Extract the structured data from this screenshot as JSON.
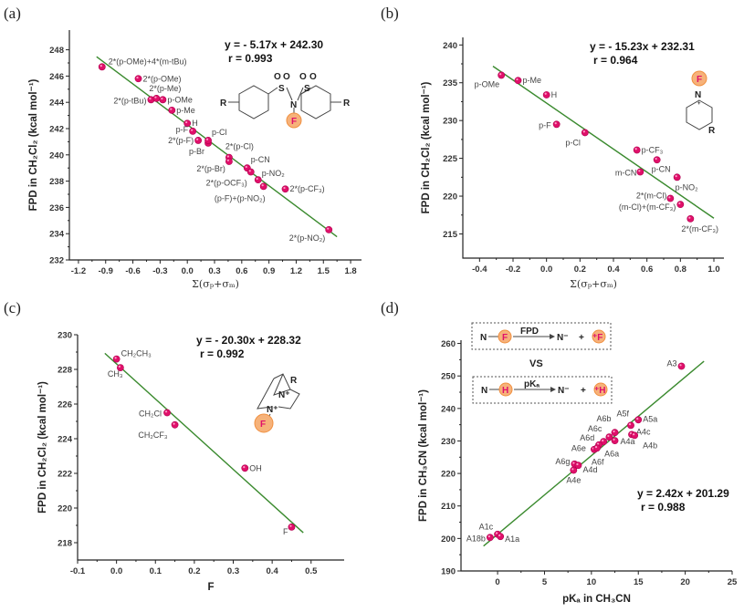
{
  "chart_data": [
    {
      "panel": "(a)",
      "type": "scatter",
      "xlabel": "Σ(σₚ+σₘ)",
      "ylabel": "FPD in CH₂Cl₂ (kcal mol⁻¹)",
      "xlim": [
        -1.3,
        1.92
      ],
      "ylim": [
        232,
        249.5
      ],
      "xticks": [
        "-1.2",
        "-0.9",
        "-0.6",
        "-0.3",
        "0.0",
        "0.3",
        "0.6",
        "0.9",
        "1.2",
        "1.5",
        "1.8"
      ],
      "xtick_values": [
        -1.2,
        -0.9,
        -0.6,
        -0.3,
        0,
        0.3,
        0.6,
        0.9,
        1.2,
        1.5,
        1.8
      ],
      "yticks": [
        "232",
        "234",
        "236",
        "238",
        "240",
        "242",
        "244",
        "246",
        "248"
      ],
      "ytick_values": [
        232,
        234,
        236,
        238,
        240,
        242,
        244,
        246,
        248
      ],
      "equation": "y = - 5.17x + 242.30",
      "r": "r = 0.993",
      "fit": {
        "slope": -5.17,
        "intercept": 242.3,
        "x_range": [
          -1.0,
          1.65
        ]
      },
      "points": [
        {
          "label": "2*(p-OMe)+4*(m-tBu)",
          "x": -0.94,
          "y": 246.7
        },
        {
          "label": "2*(p-OMe)",
          "x": -0.54,
          "y": 245.8
        },
        {
          "label": "2*(p-tBu)",
          "x": -0.4,
          "y": 244.2
        },
        {
          "label": "2*(p-Me)",
          "x": -0.34,
          "y": 244.3
        },
        {
          "label": "p-OMe",
          "x": -0.27,
          "y": 244.2
        },
        {
          "label": "p-Me",
          "x": -0.17,
          "y": 243.4
        },
        {
          "label": "H",
          "x": 0.0,
          "y": 242.4
        },
        {
          "label": "p-F",
          "x": 0.06,
          "y": 241.8
        },
        {
          "label": "2*(p-F)",
          "x": 0.12,
          "y": 241.1
        },
        {
          "label": "p-Br",
          "x": 0.23,
          "y": 240.9
        },
        {
          "label": "p-Cl",
          "x": 0.23,
          "y": 241.1
        },
        {
          "label": "2*(p-Cl)",
          "x": 0.46,
          "y": 239.8
        },
        {
          "label": "2*(p-Br)",
          "x": 0.46,
          "y": 239.5
        },
        {
          "label": "p-CN",
          "x": 0.66,
          "y": 239.0
        },
        {
          "label": "2*(p-OCF₃)",
          "x": 0.7,
          "y": 238.7
        },
        {
          "label": "p-NO₂",
          "x": 0.78,
          "y": 238.1
        },
        {
          "label": "(p-F)+(p-NO₂)",
          "x": 0.84,
          "y": 237.6
        },
        {
          "label": "2*(p-CF₃)",
          "x": 1.08,
          "y": 237.4
        },
        {
          "label": "2*(p-NO₂)",
          "x": 1.56,
          "y": 234.3
        }
      ]
    },
    {
      "panel": "(b)",
      "type": "scatter",
      "xlabel": "Σ(σₚ+σₘ)",
      "ylabel": "FPD in CH₂Cl₂ (kcal mol⁻¹)",
      "xlim": [
        -0.5,
        1.06
      ],
      "ylim": [
        211.8,
        241
      ],
      "xticks": [
        "-0.4",
        "-0.2",
        "0.0",
        "0.2",
        "0.4",
        "0.6",
        "0.8",
        "1.0"
      ],
      "xtick_values": [
        -0.4,
        -0.2,
        0,
        0.2,
        0.4,
        0.6,
        0.8,
        1.0
      ],
      "yticks": [
        "215",
        "220",
        "225",
        "230",
        "235",
        "240"
      ],
      "ytick_values": [
        215,
        220,
        225,
        230,
        235,
        240
      ],
      "equation": "y = - 15.23x + 232.31",
      "r": "r = 0.964",
      "fit": {
        "slope": -15.23,
        "intercept": 232.31,
        "x_range": [
          -0.32,
          1.0
        ]
      },
      "points": [
        {
          "label": "p-OMe",
          "x": -0.27,
          "y": 236.0
        },
        {
          "label": "p-Me",
          "x": -0.17,
          "y": 235.3
        },
        {
          "label": "H",
          "x": 0.0,
          "y": 233.4
        },
        {
          "label": "p-F",
          "x": 0.06,
          "y": 229.5
        },
        {
          "label": "p-Cl",
          "x": 0.23,
          "y": 228.4
        },
        {
          "label": "p-CF₃",
          "x": 0.54,
          "y": 226.1
        },
        {
          "label": "m-CN",
          "x": 0.56,
          "y": 223.2
        },
        {
          "label": "p-CN",
          "x": 0.66,
          "y": 224.8
        },
        {
          "label": "p-NO₂",
          "x": 0.78,
          "y": 222.5
        },
        {
          "label": "2*(m-Cl)",
          "x": 0.74,
          "y": 219.7
        },
        {
          "label": "(m-Cl)+(m-CF₃)",
          "x": 0.8,
          "y": 218.9
        },
        {
          "label": "2*(m-CF₃)",
          "x": 0.86,
          "y": 217.0
        }
      ]
    },
    {
      "panel": "(c)",
      "type": "scatter",
      "xlabel": "F",
      "ylabel": "FPD in CH₂Cl₂ (kcal mol⁻¹)",
      "xlim": [
        -0.1,
        0.585
      ],
      "ylim": [
        217,
        230
      ],
      "xticks": [
        "-0.1",
        "0.0",
        "0.1",
        "0.2",
        "0.3",
        "0.4",
        "0.5"
      ],
      "xtick_values": [
        -0.1,
        0,
        0.1,
        0.2,
        0.3,
        0.4,
        0.5
      ],
      "yticks": [
        "218",
        "220",
        "222",
        "224",
        "226",
        "228",
        "230"
      ],
      "ytick_values": [
        218,
        220,
        222,
        224,
        226,
        228,
        230
      ],
      "equation": "y = - 20.30x + 228.32",
      "r": "r = 0.992",
      "fit": {
        "slope": -20.3,
        "intercept": 228.32,
        "x_range": [
          -0.03,
          0.48
        ]
      },
      "points": [
        {
          "label": "CH₂CH₃",
          "x": 0.0,
          "y": 228.6
        },
        {
          "label": "CH₃",
          "x": 0.01,
          "y": 228.1
        },
        {
          "label": "CH₂Cl",
          "x": 0.13,
          "y": 225.5
        },
        {
          "label": "CH₂CF₃",
          "x": 0.15,
          "y": 224.8
        },
        {
          "label": "OH",
          "x": 0.33,
          "y": 222.3
        },
        {
          "label": "F",
          "x": 0.45,
          "y": 218.9
        }
      ]
    },
    {
      "panel": "(d)",
      "type": "scatter",
      "xlabel": "pKₐ in CH₃CN",
      "ylabel": "FPD in CH₃CN (kcal mol⁻¹)",
      "xlim": [
        -3.9,
        25
      ],
      "ylim": [
        190,
        261
      ],
      "xticks": [
        "0",
        "5",
        "10",
        "15",
        "20",
        "25"
      ],
      "xtick_values": [
        0,
        5,
        10,
        15,
        20,
        25
      ],
      "yticks": [
        "190",
        "200",
        "210",
        "220",
        "230",
        "240",
        "250",
        "260"
      ],
      "ytick_values": [
        190,
        200,
        210,
        220,
        230,
        240,
        250,
        260
      ],
      "equation": "y = 2.42x + 201.29",
      "r": "r = 0.988",
      "fit": {
        "slope": 2.42,
        "intercept": 201.29,
        "x_range": [
          -1.5,
          22
        ]
      },
      "points": [
        {
          "label": "A3",
          "x": 19.6,
          "y": 253.0
        },
        {
          "label": "A5a",
          "x": 15.0,
          "y": 236.5
        },
        {
          "label": "A5f",
          "x": 14.2,
          "y": 234.8
        },
        {
          "label": "A4c",
          "x": 14.3,
          "y": 232.0
        },
        {
          "label": "A4b",
          "x": 14.6,
          "y": 231.7
        },
        {
          "label": "A6b",
          "x": 12.5,
          "y": 232.6
        },
        {
          "label": "A4a",
          "x": 12.5,
          "y": 230.1
        },
        {
          "label": "A6c",
          "x": 11.9,
          "y": 231.2
        },
        {
          "label": "A6d",
          "x": 11.3,
          "y": 229.8
        },
        {
          "label": "A6a",
          "x": 10.8,
          "y": 228.8
        },
        {
          "label": "A6e",
          "x": 10.3,
          "y": 227.4
        },
        {
          "label": "A6f",
          "x": 10.6,
          "y": 227.8
        },
        {
          "label": "A6g",
          "x": 8.2,
          "y": 222.9
        },
        {
          "label": "A4d",
          "x": 8.6,
          "y": 222.5
        },
        {
          "label": "A4e",
          "x": 8.1,
          "y": 221.0
        },
        {
          "label": "A1c",
          "x": 0.0,
          "y": 201.3
        },
        {
          "label": "A18b",
          "x": -0.8,
          "y": 200.3
        },
        {
          "label": "A1a",
          "x": 0.3,
          "y": 200.6
        }
      ]
    }
  ],
  "structures": {
    "a": {
      "o": "O",
      "s": "S",
      "n": "N",
      "f": "F",
      "r": "R"
    },
    "b": {
      "f": "F",
      "n": "N",
      "plus": "+",
      "r": "R"
    },
    "c": {
      "r": "R",
      "n1": "N⁺",
      "n2": "N⁺",
      "f": "F"
    },
    "d": {
      "n": "N",
      "f": "F",
      "fpd": "FPD",
      "n_minus": "N⁻",
      "plus": "+",
      "f_plus": "⁺F",
      "vs": "VS",
      "h": "H",
      "pka": "pKₐ",
      "h_plus": "⁺H"
    }
  }
}
